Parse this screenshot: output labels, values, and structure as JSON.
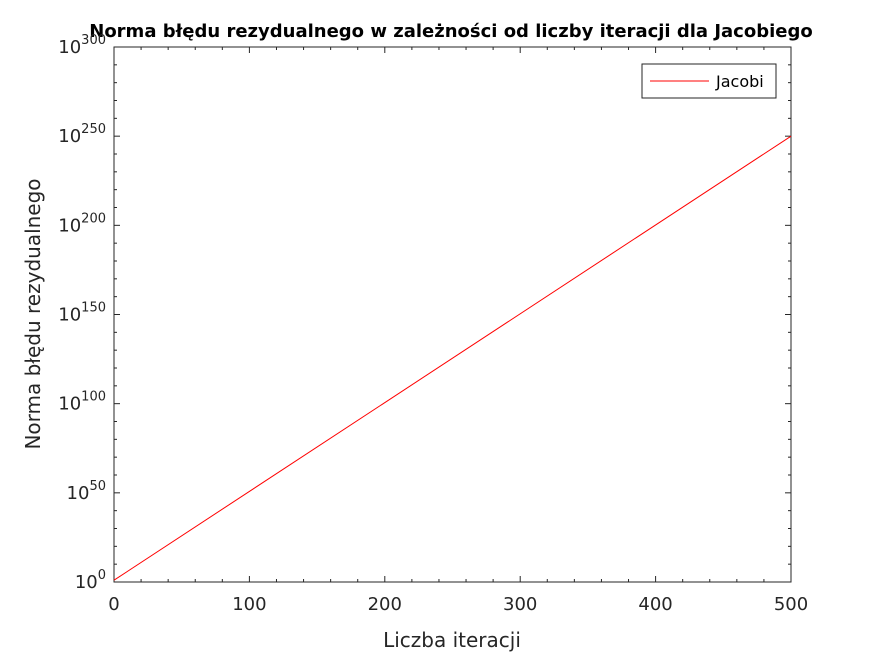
{
  "chart_data": {
    "type": "line",
    "title": "Norma błędu rezydualnego w zależności od liczby iteracji dla Jacobiego",
    "xlabel": "Liczba iteracji",
    "ylabel": "Norma błędu rezydualnego",
    "xlim": [
      0,
      500
    ],
    "ylim_log10": [
      0,
      300
    ],
    "yscale": "log",
    "x_ticks": [
      "0",
      "100",
      "200",
      "300",
      "400",
      "500"
    ],
    "y_ticks": [
      {
        "base": "10",
        "exp": "0"
      },
      {
        "base": "10",
        "exp": "50"
      },
      {
        "base": "10",
        "exp": "100"
      },
      {
        "base": "10",
        "exp": "150"
      },
      {
        "base": "10",
        "exp": "200"
      },
      {
        "base": "10",
        "exp": "250"
      },
      {
        "base": "10",
        "exp": "300"
      }
    ],
    "grid": false,
    "legend_position": "top-right",
    "series": [
      {
        "name": "Jacobi",
        "color": "#ff0000",
        "x": [
          0,
          500
        ],
        "log10_y": [
          1,
          250
        ]
      }
    ]
  }
}
